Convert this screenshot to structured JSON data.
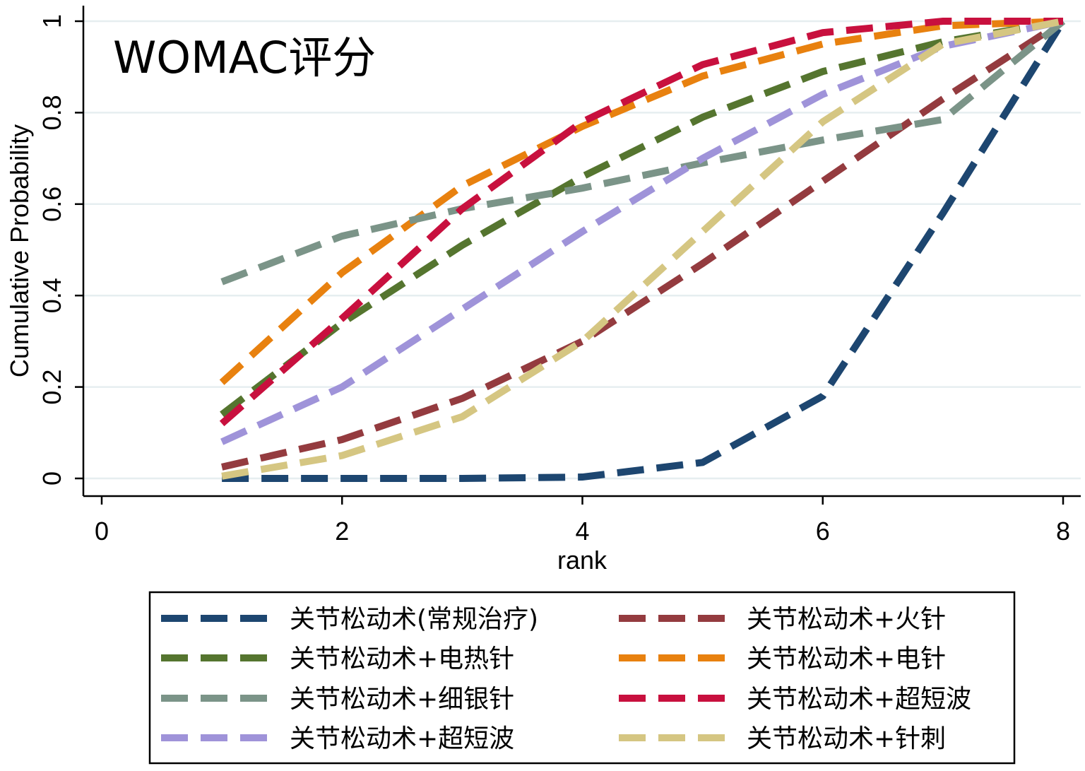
{
  "chart_data": {
    "type": "line",
    "title": "WOMAC评分",
    "xlabel": "rank",
    "ylabel": "Cumulative Probability",
    "xlim": [
      0,
      8
    ],
    "ylim": [
      0,
      1
    ],
    "x_ticks": [
      0,
      2,
      4,
      6,
      8
    ],
    "y_ticks": [
      0,
      0.2,
      0.4,
      0.6,
      0.8,
      1
    ],
    "x_tick_labels": [
      "0",
      "2",
      "4",
      "6",
      "8"
    ],
    "y_tick_labels": [
      "0",
      "0.2",
      "0.4",
      "0.6",
      "0.8",
      "1"
    ],
    "grid": "horizontal",
    "legend_position": "bottom",
    "x": [
      1,
      2,
      3,
      4,
      5,
      6,
      7,
      8
    ],
    "series": [
      {
        "name": "关节松动术(常规治疗)",
        "color": "#1d4670",
        "values": [
          0.0,
          0.0,
          0.0,
          0.003,
          0.035,
          0.18,
          0.58,
          1.0
        ]
      },
      {
        "name": "关节松动术+火针",
        "color": "#943b3f",
        "values": [
          0.025,
          0.085,
          0.175,
          0.3,
          0.47,
          0.65,
          0.83,
          1.0
        ]
      },
      {
        "name": "关节松动术+电热针",
        "color": "#55752f",
        "values": [
          0.14,
          0.34,
          0.51,
          0.66,
          0.79,
          0.89,
          0.955,
          1.0
        ]
      },
      {
        "name": "关节松动术+电针",
        "color": "#e8810f",
        "values": [
          0.21,
          0.45,
          0.64,
          0.77,
          0.88,
          0.95,
          0.99,
          1.0
        ]
      },
      {
        "name": "关节松动术+细银针",
        "color": "#7b9488",
        "values": [
          0.43,
          0.53,
          0.59,
          0.635,
          0.69,
          0.74,
          0.785,
          1.0
        ]
      },
      {
        "name": "关节松动术+超短波",
        "color": "#c8103e",
        "values": [
          0.12,
          0.35,
          0.59,
          0.78,
          0.905,
          0.975,
          1.0,
          1.0
        ]
      },
      {
        "name": "关节松动术+超短波",
        "color": "#9f93d9",
        "values": [
          0.08,
          0.2,
          0.37,
          0.54,
          0.7,
          0.84,
          0.945,
          1.0
        ]
      },
      {
        "name": "关节松动术+针刺",
        "color": "#d5c682",
        "values": [
          0.005,
          0.05,
          0.135,
          0.3,
          0.54,
          0.78,
          0.95,
          1.0
        ]
      }
    ]
  }
}
